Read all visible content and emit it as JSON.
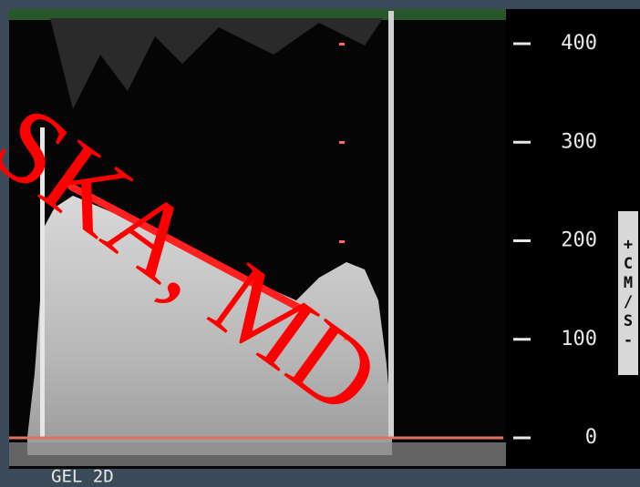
{
  "scale": {
    "labels": [
      "400",
      "300",
      "200",
      "100",
      "0"
    ],
    "unit": "+CM/S-"
  },
  "footer": "GEL 2D",
  "watermark": "SKA, MD"
}
